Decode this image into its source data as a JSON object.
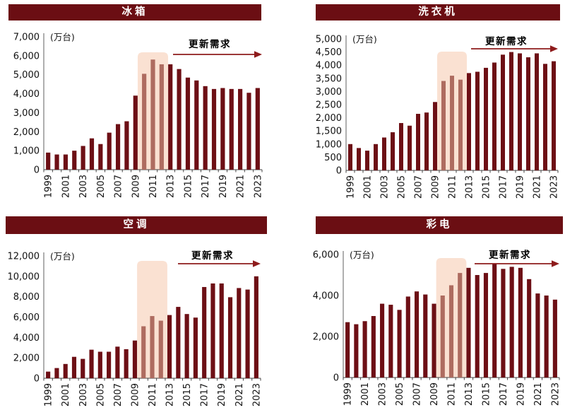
{
  "colors": {
    "bar_dark": "#6d0f15",
    "bar_light": "#ae6c60",
    "highlight_fill": "#fae1d2",
    "title_bg": "#6b0e13",
    "title_text": "#ffffff",
    "arrow": "#8e1b1c",
    "axis_line": "#7a7a7a",
    "baseline": "#444444",
    "label_text": "#111111"
  },
  "annotation_label": "更新需求",
  "unit_label": "(万台)",
  "x_tick_labels": [
    "1999",
    "2001",
    "2003",
    "2005",
    "2007",
    "2009",
    "2011",
    "2013",
    "2015",
    "2017",
    "2019",
    "2021",
    "2023"
  ],
  "chart_data": [
    {
      "type": "bar",
      "title": "冰箱",
      "ylabel": "(万台)",
      "annotation": "更新需求",
      "x": [
        1999,
        2000,
        2001,
        2002,
        2003,
        2004,
        2005,
        2006,
        2007,
        2008,
        2009,
        2010,
        2011,
        2012,
        2013,
        2014,
        2015,
        2016,
        2017,
        2018,
        2019,
        2020,
        2021,
        2022,
        2023
      ],
      "values": [
        900,
        800,
        800,
        1000,
        1250,
        1650,
        1350,
        1950,
        2400,
        2550,
        3900,
        5050,
        5800,
        5550,
        5550,
        5300,
        4850,
        4700,
        4400,
        4250,
        4300,
        4250,
        4250,
        4050,
        4300
      ],
      "ylim": [
        0,
        7000
      ],
      "ytick_step": 1000,
      "highlight_years": [
        2010,
        2011,
        2012
      ],
      "grid": false,
      "legend": "none"
    },
    {
      "type": "bar",
      "title": "洗衣机",
      "ylabel": "(万台)",
      "annotation": "更新需求",
      "x": [
        1999,
        2000,
        2001,
        2002,
        2003,
        2004,
        2005,
        2006,
        2007,
        2008,
        2009,
        2010,
        2011,
        2012,
        2013,
        2014,
        2015,
        2016,
        2017,
        2018,
        2019,
        2020,
        2021,
        2022,
        2023
      ],
      "values": [
        1000,
        850,
        750,
        1000,
        1250,
        1450,
        1800,
        1700,
        2150,
        2200,
        2600,
        3400,
        3600,
        3450,
        3700,
        3750,
        3900,
        4100,
        4400,
        4500,
        4450,
        4300,
        4450,
        4050,
        4150
      ],
      "ylim": [
        0,
        5000
      ],
      "ytick_step": 500,
      "highlight_years": [
        2010,
        2011,
        2012
      ],
      "grid": false,
      "legend": "none"
    },
    {
      "type": "bar",
      "title": "空调",
      "ylabel": "(万台)",
      "annotation": "更新需求",
      "x": [
        1999,
        2000,
        2001,
        2002,
        2003,
        2004,
        2005,
        2006,
        2007,
        2008,
        2009,
        2010,
        2011,
        2012,
        2013,
        2014,
        2015,
        2016,
        2017,
        2018,
        2019,
        2020,
        2021,
        2022,
        2023
      ],
      "values": [
        650,
        1000,
        1400,
        2100,
        1900,
        2800,
        2600,
        2600,
        3100,
        2850,
        3700,
        5100,
        6100,
        5650,
        6200,
        7000,
        6300,
        5950,
        8950,
        9300,
        9300,
        7950,
        8850,
        8700,
        10000
      ],
      "ylim": [
        0,
        12000
      ],
      "ytick_step": 2000,
      "highlight_years": [
        2010,
        2011,
        2012
      ],
      "grid": false,
      "legend": "none"
    },
    {
      "type": "bar",
      "title": "彩电",
      "ylabel": "(万台)",
      "annotation": "更新需求",
      "x": [
        1999,
        2000,
        2001,
        2002,
        2003,
        2004,
        2005,
        2006,
        2007,
        2008,
        2009,
        2010,
        2011,
        2012,
        2013,
        2014,
        2015,
        2016,
        2017,
        2018,
        2019,
        2020,
        2021,
        2022,
        2023
      ],
      "values": [
        2700,
        2600,
        2750,
        3000,
        3600,
        3550,
        3300,
        3950,
        4200,
        4050,
        3600,
        4000,
        4500,
        5100,
        5350,
        5000,
        5100,
        5550,
        5300,
        5400,
        5350,
        4800,
        4100,
        4000,
        3800
      ],
      "ylim": [
        0,
        6000
      ],
      "ytick_step": 2000,
      "highlight_years": [
        2010,
        2011,
        2012
      ],
      "grid": false,
      "legend": "none"
    }
  ]
}
